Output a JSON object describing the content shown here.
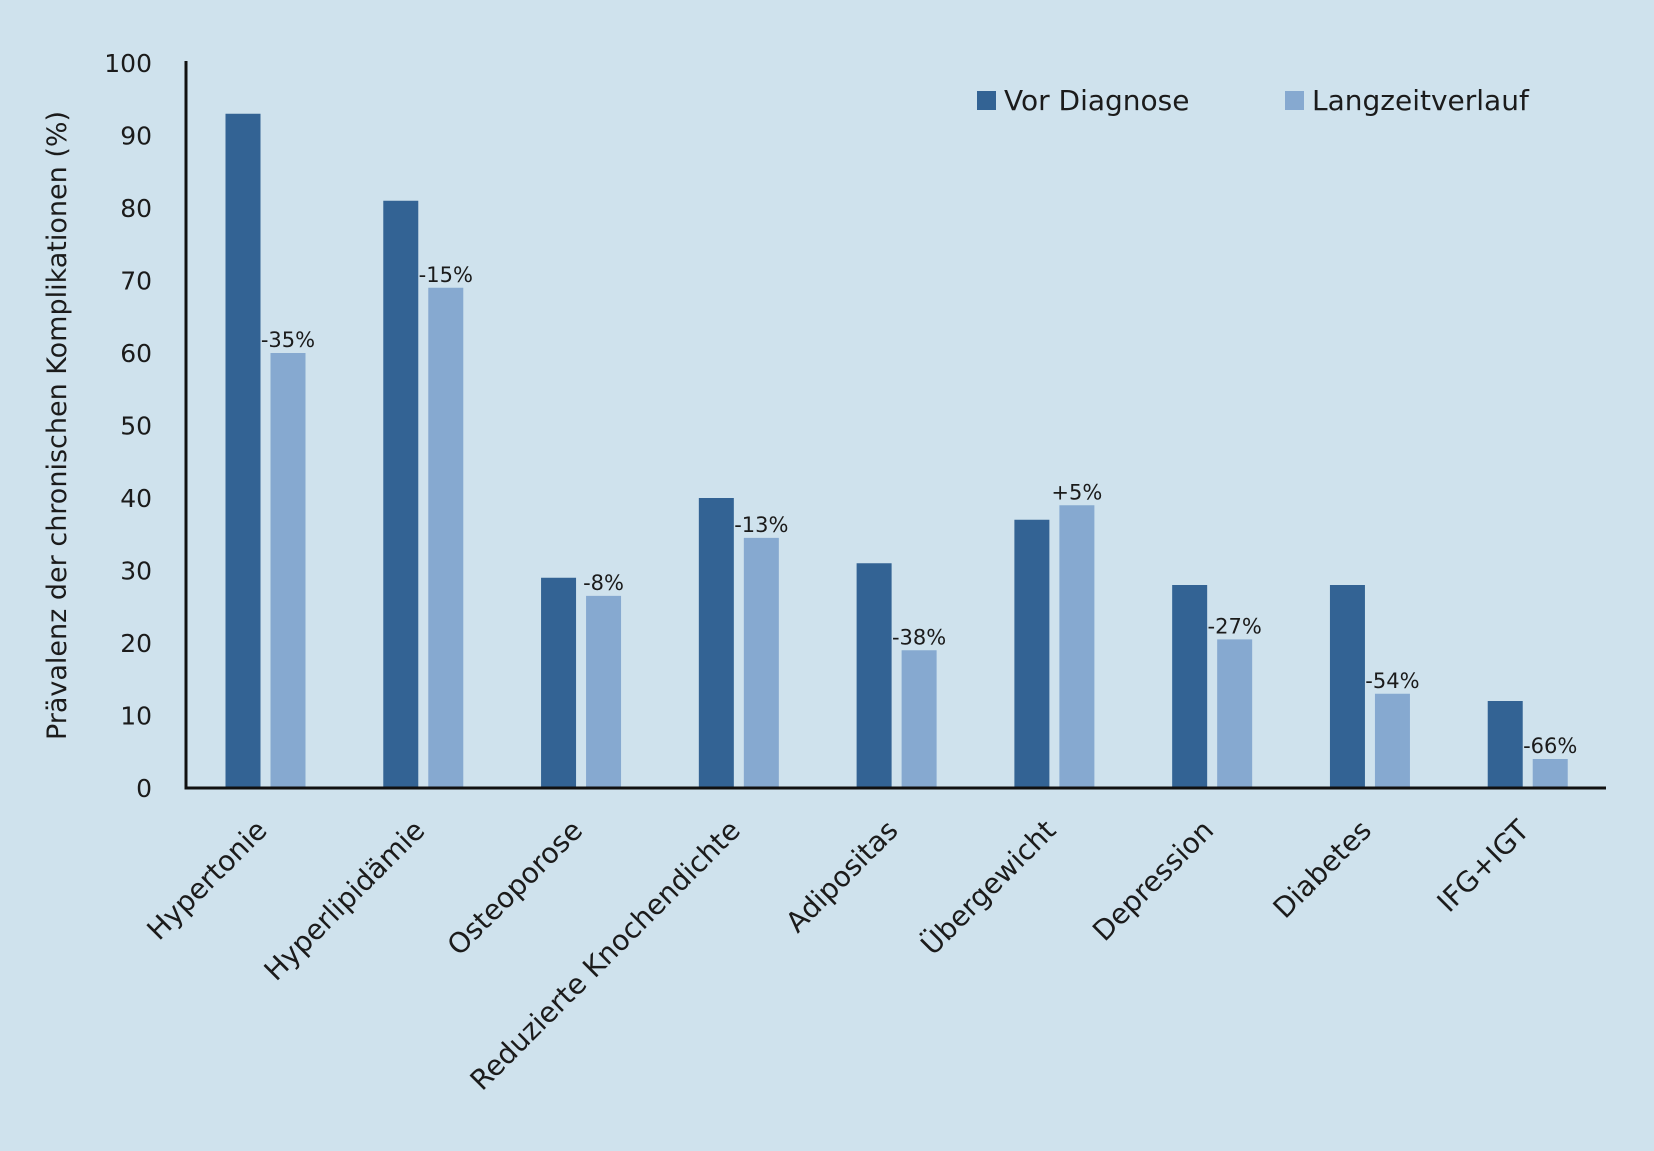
{
  "chart_data": {
    "type": "bar",
    "title": "",
    "xlabel": "",
    "ylabel": "Prävalenz der chronischen Komplikationen (%)",
    "ylim": [
      0,
      100
    ],
    "yticks": [
      0,
      10,
      20,
      30,
      40,
      50,
      60,
      70,
      80,
      90,
      100
    ],
    "grid": false,
    "legend_position": "top-right",
    "categories": [
      "Hypertonie",
      "Hyperlipidämie",
      "Osteoporose",
      "Reduzierte Knochendichte",
      "Adipositas",
      "Übergewicht",
      "Depression",
      "Diabetes",
      "IFG+IGT"
    ],
    "series": [
      {
        "name": "Vor Diagnose",
        "color": "#336394",
        "values": [
          93,
          81,
          29,
          40,
          31,
          37,
          28,
          28,
          12
        ]
      },
      {
        "name": "Langzeitverlauf",
        "color": "#86a9d0",
        "values": [
          60,
          69,
          26.5,
          34.5,
          19,
          39,
          20.5,
          13,
          4
        ]
      }
    ],
    "data_labels": [
      "-35%",
      "-15%",
      "-8%",
      "-13%",
      "-38%",
      "+5%",
      "-27%",
      "-54%",
      "-66%"
    ]
  }
}
